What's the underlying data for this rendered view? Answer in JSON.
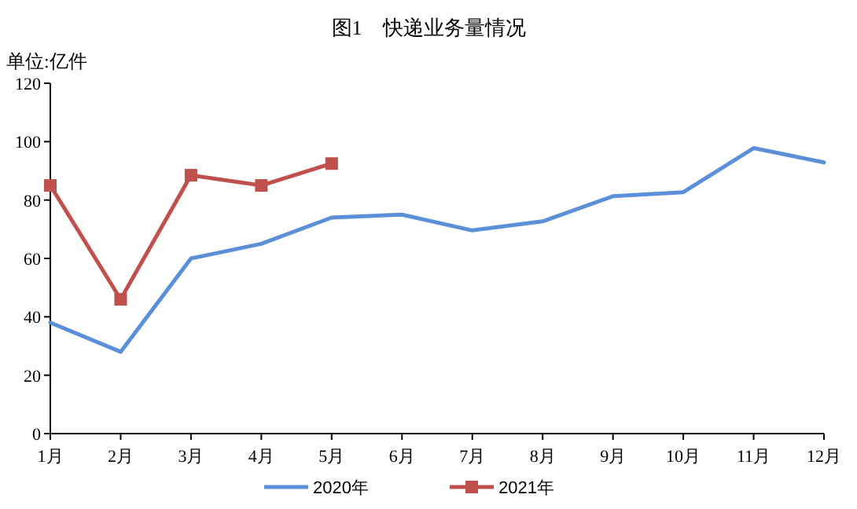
{
  "chart_data": {
    "type": "line",
    "title": "图1　快递业务量情况",
    "ylabel": "单位:亿件",
    "categories": [
      "1月",
      "2月",
      "3月",
      "4月",
      "5月",
      "6月",
      "7月",
      "8月",
      "9月",
      "10月",
      "11月",
      "12月"
    ],
    "series": [
      {
        "name": "2020年",
        "color": "#5b8fd8",
        "marker": "none",
        "values": [
          38,
          28,
          60,
          65,
          74,
          75,
          69.6,
          72.7,
          81.3,
          82.7,
          97.8,
          92.9
        ]
      },
      {
        "name": "2021年",
        "color": "#c0504d",
        "marker": "square",
        "values": [
          85,
          46,
          88.5,
          85,
          92.5,
          null,
          null,
          null,
          null,
          null,
          null,
          null
        ]
      }
    ],
    "ylim": [
      0,
      120
    ],
    "yticks": [
      0,
      20,
      40,
      60,
      80,
      100,
      120
    ],
    "grid": false,
    "legend": "bottom"
  }
}
